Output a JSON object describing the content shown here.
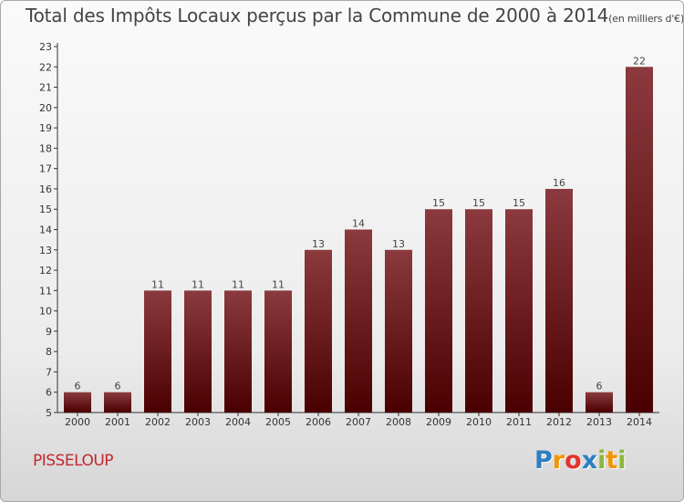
{
  "chart_data": {
    "type": "bar",
    "title": "Total des Impôts Locaux perçus par la Commune de 2000 à 2014",
    "title_unit": "(en milliers d'€)",
    "xlabel": "",
    "ylabel": "",
    "categories": [
      "2000",
      "2001",
      "2002",
      "2003",
      "2004",
      "2005",
      "2006",
      "2007",
      "2008",
      "2009",
      "2010",
      "2011",
      "2012",
      "2013",
      "2014"
    ],
    "values": [
      6,
      6,
      11,
      11,
      11,
      11,
      13,
      14,
      13,
      15,
      15,
      15,
      16,
      6,
      22
    ],
    "ylim": [
      5,
      23
    ],
    "yticks": [
      5,
      6,
      7,
      8,
      9,
      10,
      11,
      12,
      13,
      14,
      15,
      16,
      17,
      18,
      19,
      20,
      21,
      22,
      23
    ],
    "grid": false,
    "bar_color_top": "#8b3a3e",
    "bar_color_bottom": "#4a0000"
  },
  "commune": "PISSELOUP",
  "logo": {
    "letters": [
      "P",
      "r",
      "o",
      "x",
      "i",
      "t",
      "i"
    ],
    "colors": [
      "#2d7fc1",
      "#f29400",
      "#e4322b",
      "#2d7fc1",
      "#8cb63c",
      "#f29400",
      "#8cb63c"
    ]
  }
}
